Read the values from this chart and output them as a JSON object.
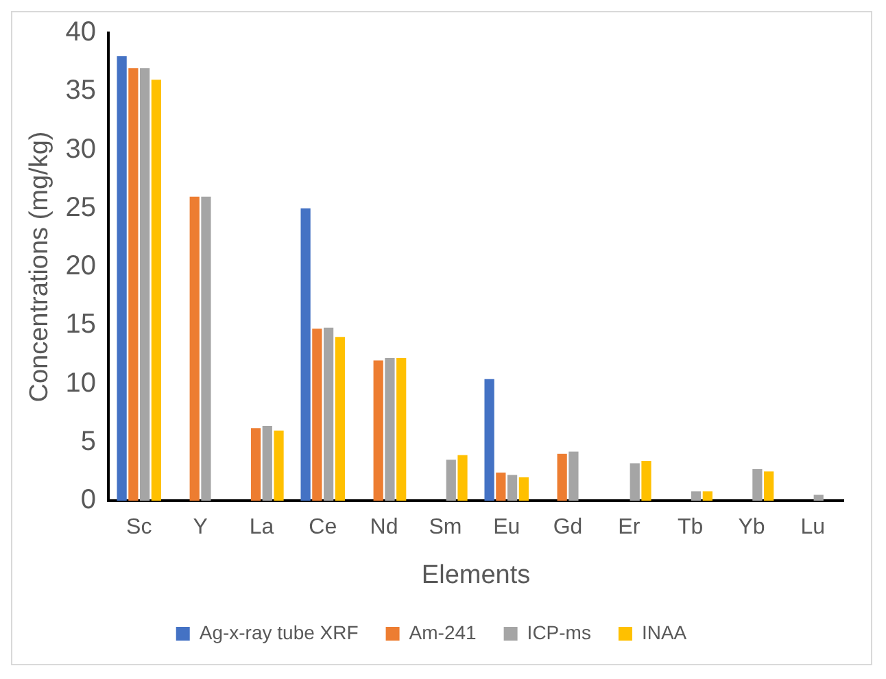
{
  "chart_data": {
    "type": "bar",
    "xlabel": "Elements",
    "ylabel": "Concentrations (mg/kg)",
    "categories": [
      "Sc",
      "Y",
      "La",
      "Ce",
      "Nd",
      "Sm",
      "Eu",
      "Gd",
      "Er",
      "Tb",
      "Yb",
      "Lu"
    ],
    "series": [
      {
        "name": "Ag-x-ray tube XRF",
        "color": "#4472c4",
        "values": [
          38,
          null,
          null,
          25,
          null,
          null,
          10.4,
          null,
          null,
          null,
          null,
          null
        ]
      },
      {
        "name": "Am-241",
        "color": "#ed7d31",
        "values": [
          37,
          26,
          6.2,
          14.7,
          12.0,
          null,
          2.4,
          4.0,
          null,
          null,
          null,
          null
        ]
      },
      {
        "name": "ICP-ms",
        "color": "#a5a5a5",
        "values": [
          37,
          26,
          6.4,
          14.8,
          12.2,
          3.5,
          2.2,
          4.2,
          3.2,
          0.8,
          2.7,
          0.5
        ]
      },
      {
        "name": "INAA",
        "color": "#ffc000",
        "values": [
          36,
          null,
          6.0,
          14.0,
          12.2,
          3.9,
          2.0,
          null,
          3.4,
          0.8,
          2.5,
          null
        ]
      }
    ],
    "ylim": [
      0,
      40
    ],
    "yticks": [
      0,
      5,
      10,
      15,
      20,
      25,
      30,
      35,
      40
    ],
    "grid": false,
    "legend": "bottom"
  }
}
